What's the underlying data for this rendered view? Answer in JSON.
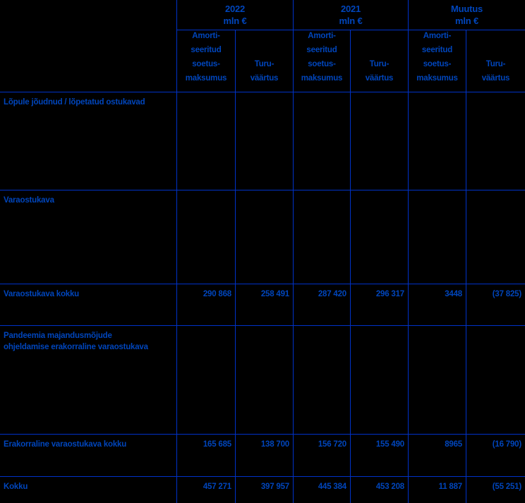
{
  "colors": {
    "background": "#000000",
    "grid_line": "#0032c8",
    "text": "#0045bb"
  },
  "table": {
    "col_groups": [
      {
        "title": "2022",
        "unit": "mln €"
      },
      {
        "title": "2021",
        "unit": "mln €"
      },
      {
        "title": "Muutus",
        "unit": "mln €"
      }
    ],
    "sub_headers": [
      "Amorti-\nseeritud\nsoetus-\nmaksumus",
      "Turu-\nväärtus",
      "Amorti-\nseeritud\nsoetus-\nmaksumus",
      "Turu-\nväärtus",
      "Amorti-\nseeritud\nsoetus-\nmaksumus",
      "Turu-\nväärtus"
    ],
    "rows": [
      {
        "label": "Lõpule jõudnud / lõpetatud ostukavad",
        "values": [
          "",
          "",
          "",
          "",
          "",
          ""
        ]
      },
      {
        "label": "Varaostukava",
        "values": [
          "",
          "",
          "",
          "",
          "",
          ""
        ]
      },
      {
        "label": "Varaostukava kokku",
        "values": [
          "290 868",
          "258 491",
          "287 420",
          "296 317",
          "3448",
          "(37 825)"
        ]
      },
      {
        "label": "Pandeemia majandusmõjude\nohjeldamise erakorraline varaostukava",
        "values": [
          "",
          "",
          "",
          "",
          "",
          ""
        ]
      },
      {
        "label": "Erakorraline varaostukava kokku",
        "values": [
          "165 685",
          "138 700",
          "156 720",
          "155 490",
          "8965",
          "(16 790)"
        ]
      },
      {
        "label": "Kokku",
        "values": [
          "457 271",
          "397 957",
          "445 384",
          "453 208",
          "11 887",
          "(55 251)"
        ]
      }
    ]
  }
}
